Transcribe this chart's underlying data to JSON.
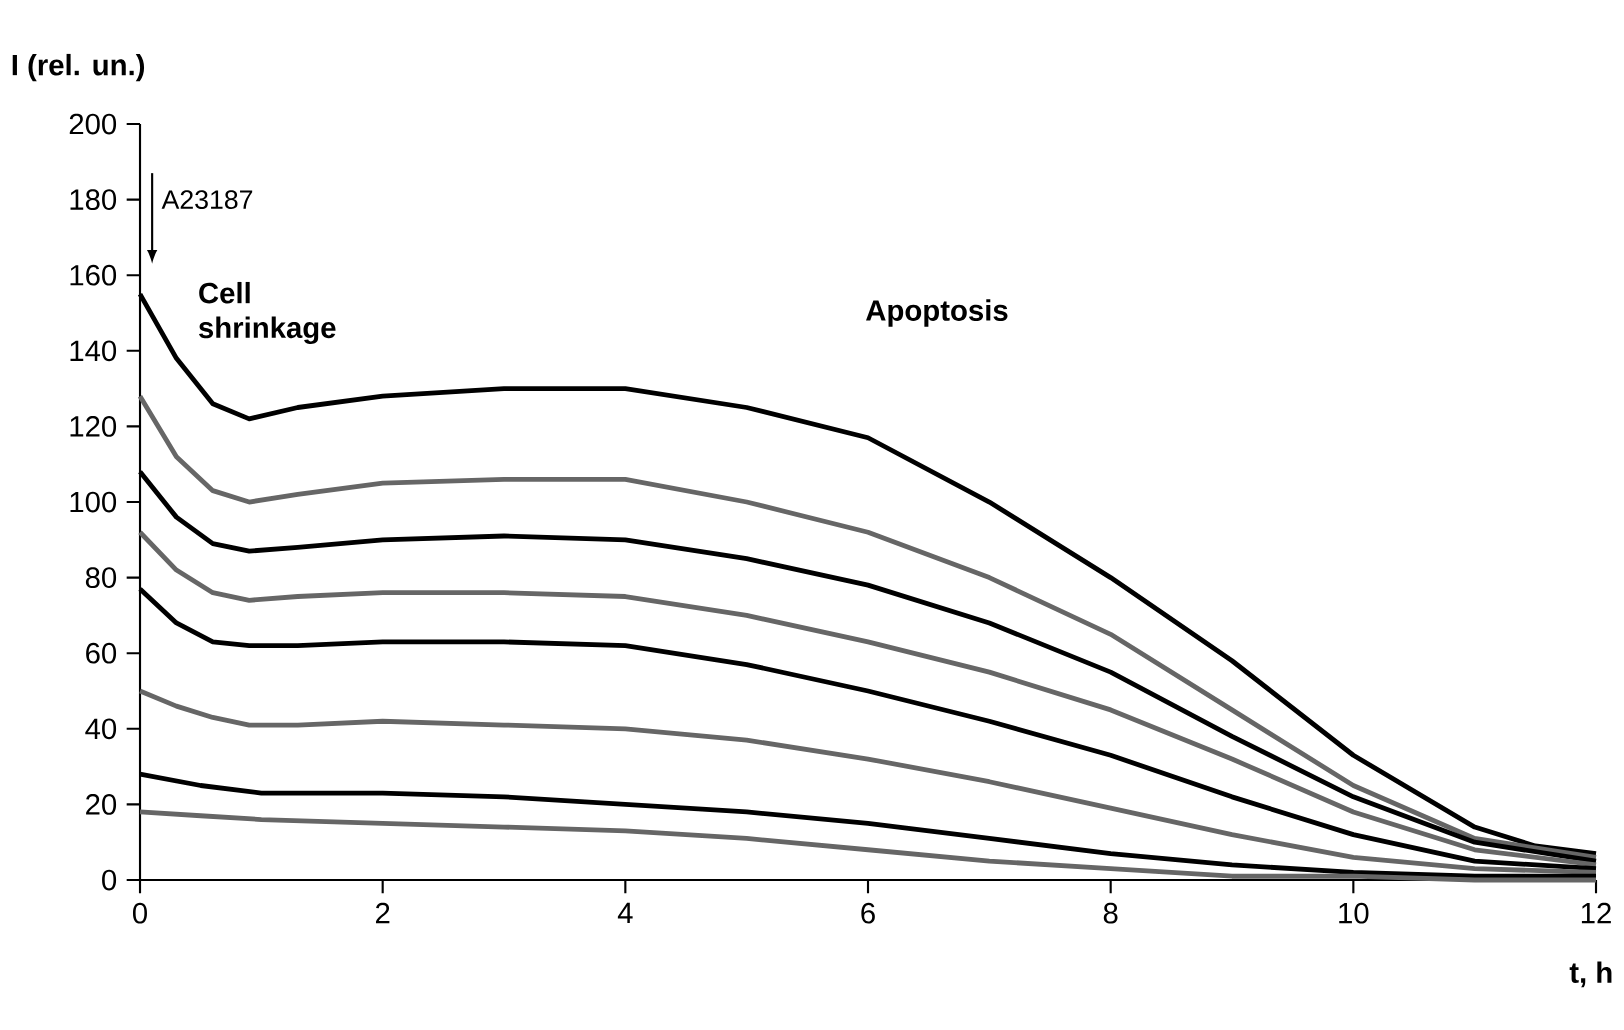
{
  "chart_data": {
    "type": "line",
    "xlabel": "t, h",
    "ylabel": "I (rel. un.)",
    "xlim": [
      0,
      12
    ],
    "ylim": [
      0,
      200
    ],
    "xticks": [
      0,
      2,
      4,
      6,
      8,
      10,
      12
    ],
    "yticks": [
      0,
      20,
      40,
      60,
      80,
      100,
      120,
      140,
      160,
      180,
      200
    ],
    "marker": "none",
    "line_style": "solid",
    "annotations": [
      "A23187",
      "Cell shrinkage",
      "Apoptosis"
    ],
    "series": [
      {
        "color": "#000000",
        "x": [
          0,
          0.3,
          0.6,
          0.9,
          1.3,
          2,
          3,
          4,
          5,
          6,
          7,
          8,
          9,
          10,
          11,
          11.5,
          12
        ],
        "values": [
          155,
          138,
          126,
          122,
          125,
          128,
          130,
          130,
          125,
          117,
          100,
          80,
          58,
          33,
          14,
          9,
          7
        ]
      },
      {
        "color": "#666666",
        "x": [
          0,
          0.3,
          0.6,
          0.9,
          1.3,
          2,
          3,
          4,
          5,
          6,
          7,
          8,
          9,
          10,
          11,
          12
        ],
        "values": [
          128,
          112,
          103,
          100,
          102,
          105,
          106,
          106,
          100,
          92,
          80,
          65,
          45,
          25,
          11,
          6
        ]
      },
      {
        "color": "#000000",
        "x": [
          0,
          0.3,
          0.6,
          0.9,
          1.3,
          2,
          3,
          4,
          5,
          6,
          7,
          8,
          9,
          10,
          11,
          12
        ],
        "values": [
          108,
          96,
          89,
          87,
          88,
          90,
          91,
          90,
          85,
          78,
          68,
          55,
          38,
          22,
          10,
          5
        ]
      },
      {
        "color": "#666666",
        "x": [
          0,
          0.3,
          0.6,
          0.9,
          1.3,
          2,
          3,
          4,
          5,
          6,
          7,
          8,
          9,
          10,
          11,
          12
        ],
        "values": [
          92,
          82,
          76,
          74,
          75,
          76,
          76,
          75,
          70,
          63,
          55,
          45,
          32,
          18,
          8,
          4
        ]
      },
      {
        "color": "#000000",
        "x": [
          0,
          0.3,
          0.6,
          0.9,
          1.3,
          2,
          3,
          4,
          5,
          6,
          7,
          8,
          9,
          10,
          11,
          12
        ],
        "values": [
          77,
          68,
          63,
          62,
          62,
          63,
          63,
          62,
          57,
          50,
          42,
          33,
          22,
          12,
          5,
          3
        ]
      },
      {
        "color": "#666666",
        "x": [
          0,
          0.3,
          0.6,
          0.9,
          1.3,
          2,
          3,
          4,
          5,
          6,
          7,
          8,
          9,
          10,
          11,
          12
        ],
        "values": [
          50,
          46,
          43,
          41,
          41,
          42,
          41,
          40,
          37,
          32,
          26,
          19,
          12,
          6,
          3,
          2
        ]
      },
      {
        "color": "#000000",
        "x": [
          0,
          0.5,
          1,
          2,
          3,
          4,
          5,
          6,
          7,
          8,
          9,
          10,
          11,
          12
        ],
        "values": [
          28,
          25,
          23,
          23,
          22,
          20,
          18,
          15,
          11,
          7,
          4,
          2,
          1,
          1
        ]
      },
      {
        "color": "#666666",
        "x": [
          0,
          0.5,
          1,
          2,
          3,
          4,
          5,
          6,
          7,
          8,
          9,
          10,
          11,
          12
        ],
        "values": [
          18,
          17,
          16,
          15,
          14,
          13,
          11,
          8,
          5,
          3,
          1,
          1,
          0,
          0
        ]
      }
    ]
  }
}
